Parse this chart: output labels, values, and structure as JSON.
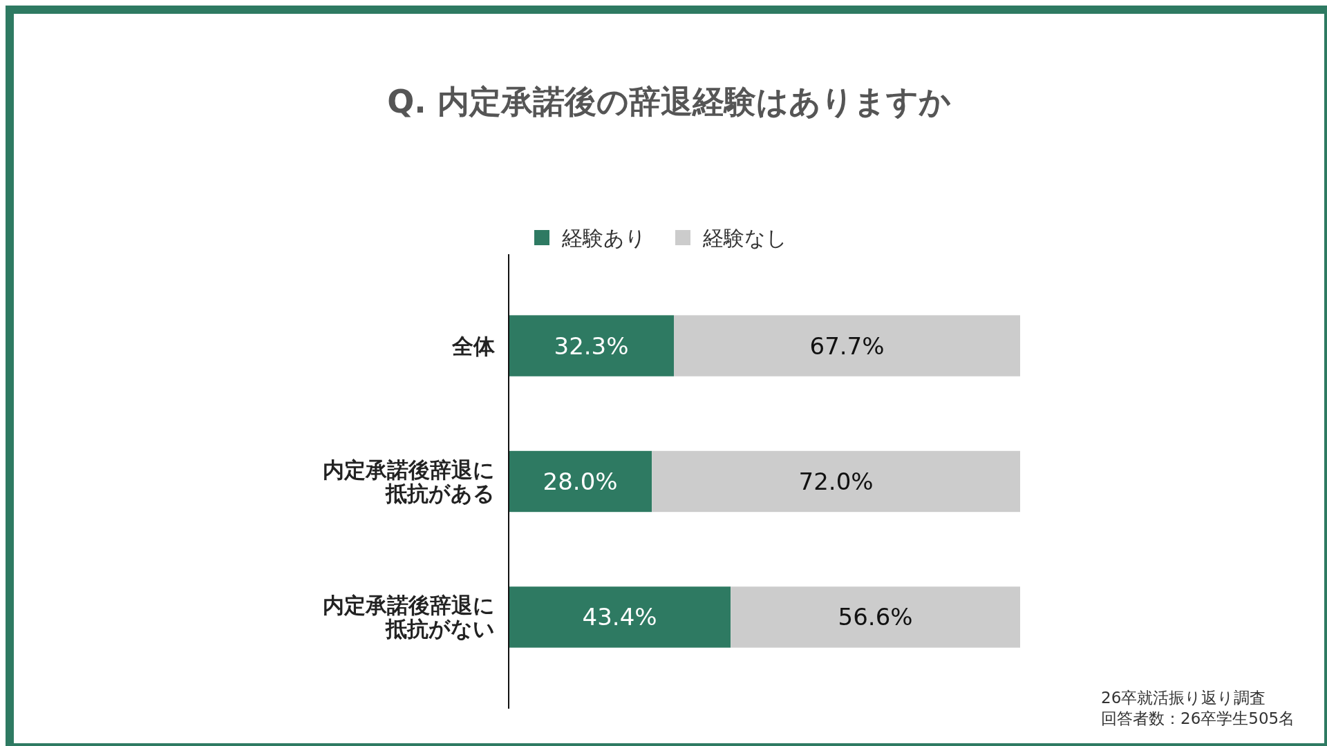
{
  "chart_data": {
    "type": "bar",
    "orientation": "horizontal",
    "stacked": true,
    "title": "Q. 内定承諾後の辞退経験はありますか",
    "categories": [
      "全体",
      "内定承諾後辞退に抵抗がある",
      "内定承諾後辞退に抵抗がない"
    ],
    "series": [
      {
        "name": "経験あり",
        "color": "#2e7a62",
        "values": [
          32.3,
          28.0,
          43.4
        ],
        "value_labels": [
          "32.3%",
          "28.0%",
          "43.4%"
        ]
      },
      {
        "name": "経験なし",
        "color": "#cccccc",
        "values": [
          67.7,
          72.0,
          56.6
        ],
        "value_labels": [
          "67.7%",
          "72.0%",
          "56.6%"
        ]
      }
    ],
    "legend": "top",
    "annotations": [
      "26卒就活振り返り調査",
      "回答者数：26卒学生505名"
    ]
  }
}
